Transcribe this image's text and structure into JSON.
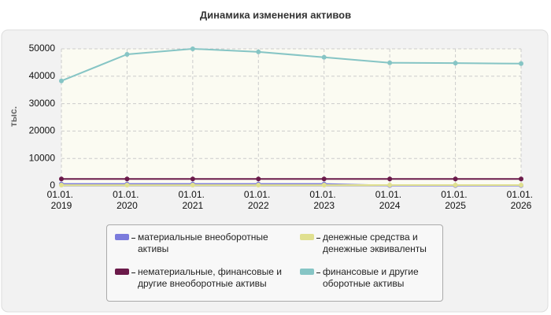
{
  "chart_data": {
    "type": "line",
    "title": "Динамика изменения активов",
    "y_label": "тыс.",
    "categories": [
      "01.01. 2019",
      "01.01. 2020",
      "01.01. 2021",
      "01.01. 2022",
      "01.01. 2023",
      "01.01. 2024",
      "01.01. 2025",
      "01.01. 2026"
    ],
    "series": [
      {
        "name": "материальные внеоборотные активы",
        "color": "#7b7bdc",
        "values": [
          700,
          700,
          700,
          700,
          700,
          100,
          100,
          100
        ]
      },
      {
        "name": "нематериальные, финансовые и другие внеоборотные активы",
        "color": "#6b1a4a",
        "values": [
          2500,
          2500,
          2500,
          2500,
          2500,
          2500,
          2500,
          2500
        ]
      },
      {
        "name": "денежные средства и денежные эквиваленты",
        "color": "#e0e090",
        "values": [
          300,
          300,
          300,
          300,
          300,
          300,
          300,
          300
        ]
      },
      {
        "name": "финансовые и другие оборотные активы",
        "color": "#86c5c5",
        "values": [
          38300,
          48000,
          50000,
          48900,
          46900,
          44900,
          44800,
          44600
        ]
      }
    ],
    "ylim": [
      0,
      50000
    ],
    "yticks": [
      0,
      10000,
      20000,
      30000,
      40000,
      50000
    ],
    "grid": true
  }
}
